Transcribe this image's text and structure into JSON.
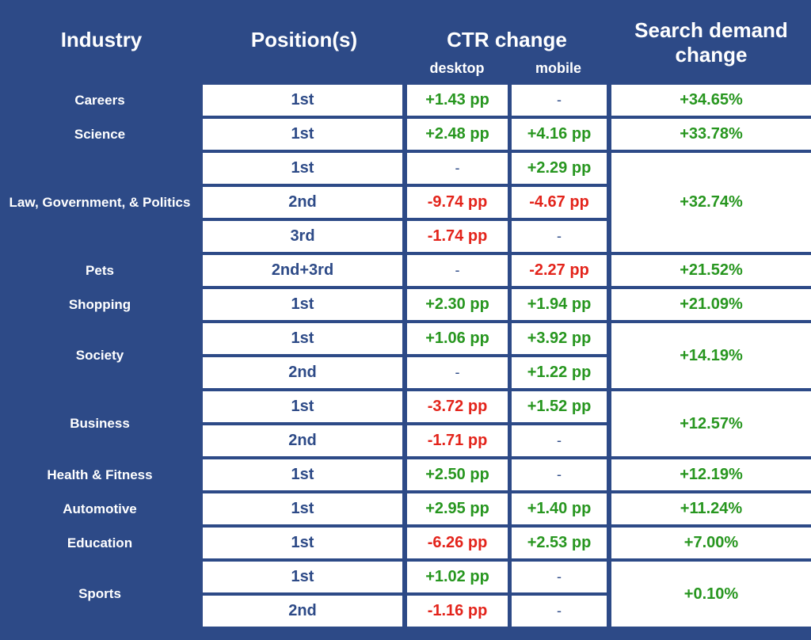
{
  "colors": {
    "header_bg": "#2d4a87",
    "cell_bg": "#ffffff",
    "positive": "#27961f",
    "negative": "#e3241b",
    "neutral": "#2d4a87"
  },
  "chart_data": {
    "type": "table",
    "title": "",
    "columns": {
      "industry": "Industry",
      "positions": "Position(s)",
      "ctr": "CTR change",
      "desktop": "desktop",
      "mobile": "mobile",
      "demand": "Search demand change"
    },
    "groups": [
      {
        "industry": "Careers",
        "search_demand_change": "+34.65%",
        "rows": [
          {
            "position": "1st",
            "desktop": "+1.43 pp",
            "mobile": "-"
          }
        ]
      },
      {
        "industry": "Science",
        "search_demand_change": "+33.78%",
        "rows": [
          {
            "position": "1st",
            "desktop": "+2.48 pp",
            "mobile": "+4.16 pp"
          }
        ]
      },
      {
        "industry": "Law, Government, & Politics",
        "search_demand_change": "+32.74%",
        "rows": [
          {
            "position": "1st",
            "desktop": "-",
            "mobile": "+2.29 pp"
          },
          {
            "position": "2nd",
            "desktop": "-9.74 pp",
            "mobile": "-4.67 pp"
          },
          {
            "position": "3rd",
            "desktop": "-1.74 pp",
            "mobile": "-"
          }
        ]
      },
      {
        "industry": "Pets",
        "search_demand_change": "+21.52%",
        "rows": [
          {
            "position": "2nd+3rd",
            "desktop": "-",
            "mobile": "-2.27 pp"
          }
        ]
      },
      {
        "industry": "Shopping",
        "search_demand_change": "+21.09%",
        "rows": [
          {
            "position": "1st",
            "desktop": "+2.30 pp",
            "mobile": "+1.94 pp"
          }
        ]
      },
      {
        "industry": "Society",
        "search_demand_change": "+14.19%",
        "rows": [
          {
            "position": "1st",
            "desktop": "+1.06 pp",
            "mobile": "+3.92 pp"
          },
          {
            "position": "2nd",
            "desktop": "-",
            "mobile": "+1.22 pp"
          }
        ]
      },
      {
        "industry": "Business",
        "search_demand_change": "+12.57%",
        "rows": [
          {
            "position": "1st",
            "desktop": "-3.72 pp",
            "mobile": "+1.52 pp"
          },
          {
            "position": "2nd",
            "desktop": "-1.71 pp",
            "mobile": "-"
          }
        ]
      },
      {
        "industry": "Health & Fitness",
        "search_demand_change": "+12.19%",
        "rows": [
          {
            "position": "1st",
            "desktop": "+2.50 pp",
            "mobile": "-"
          }
        ]
      },
      {
        "industry": "Automotive",
        "search_demand_change": "+11.24%",
        "rows": [
          {
            "position": "1st",
            "desktop": "+2.95 pp",
            "mobile": "+1.40 pp"
          }
        ]
      },
      {
        "industry": "Education",
        "search_demand_change": "+7.00%",
        "rows": [
          {
            "position": "1st",
            "desktop": "-6.26 pp",
            "mobile": "+2.53 pp"
          }
        ]
      },
      {
        "industry": "Sports",
        "search_demand_change": "+0.10%",
        "rows": [
          {
            "position": "1st",
            "desktop": "+1.02 pp",
            "mobile": "-"
          },
          {
            "position": "2nd",
            "desktop": "-1.16 pp",
            "mobile": "-"
          }
        ]
      }
    ]
  }
}
